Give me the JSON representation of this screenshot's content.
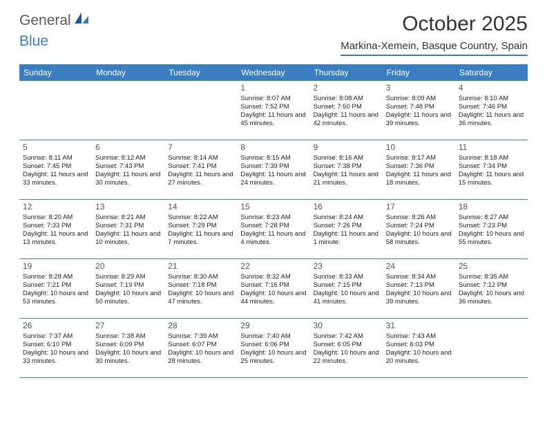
{
  "logo": {
    "text1": "General",
    "text2": "Blue"
  },
  "title": "October 2025",
  "location": "Markina-Xemein, Basque Country, Spain",
  "weekdays": [
    "Sunday",
    "Monday",
    "Tuesday",
    "Wednesday",
    "Thursday",
    "Friday",
    "Saturday"
  ],
  "colors": {
    "brand": "#3a7dc0",
    "text": "#333333",
    "cellText": "#222222",
    "headerBg": "#3a7dc0",
    "headerFg": "#ffffff"
  },
  "startOffset": 3,
  "days": [
    {
      "n": "1",
      "sr": "8:07 AM",
      "ss": "7:52 PM",
      "dl": "11 hours and 45 minutes."
    },
    {
      "n": "2",
      "sr": "8:08 AM",
      "ss": "7:50 PM",
      "dl": "11 hours and 42 minutes."
    },
    {
      "n": "3",
      "sr": "8:09 AM",
      "ss": "7:48 PM",
      "dl": "11 hours and 39 minutes."
    },
    {
      "n": "4",
      "sr": "8:10 AM",
      "ss": "7:46 PM",
      "dl": "11 hours and 36 minutes."
    },
    {
      "n": "5",
      "sr": "8:11 AM",
      "ss": "7:45 PM",
      "dl": "11 hours and 33 minutes."
    },
    {
      "n": "6",
      "sr": "8:12 AM",
      "ss": "7:43 PM",
      "dl": "11 hours and 30 minutes."
    },
    {
      "n": "7",
      "sr": "8:14 AM",
      "ss": "7:41 PM",
      "dl": "11 hours and 27 minutes."
    },
    {
      "n": "8",
      "sr": "8:15 AM",
      "ss": "7:39 PM",
      "dl": "11 hours and 24 minutes."
    },
    {
      "n": "9",
      "sr": "8:16 AM",
      "ss": "7:38 PM",
      "dl": "11 hours and 21 minutes."
    },
    {
      "n": "10",
      "sr": "8:17 AM",
      "ss": "7:36 PM",
      "dl": "11 hours and 18 minutes."
    },
    {
      "n": "11",
      "sr": "8:18 AM",
      "ss": "7:34 PM",
      "dl": "11 hours and 15 minutes."
    },
    {
      "n": "12",
      "sr": "8:20 AM",
      "ss": "7:33 PM",
      "dl": "11 hours and 13 minutes."
    },
    {
      "n": "13",
      "sr": "8:21 AM",
      "ss": "7:31 PM",
      "dl": "11 hours and 10 minutes."
    },
    {
      "n": "14",
      "sr": "8:22 AM",
      "ss": "7:29 PM",
      "dl": "11 hours and 7 minutes."
    },
    {
      "n": "15",
      "sr": "8:23 AM",
      "ss": "7:28 PM",
      "dl": "11 hours and 4 minutes."
    },
    {
      "n": "16",
      "sr": "8:24 AM",
      "ss": "7:26 PM",
      "dl": "11 hours and 1 minute."
    },
    {
      "n": "17",
      "sr": "8:26 AM",
      "ss": "7:24 PM",
      "dl": "10 hours and 58 minutes."
    },
    {
      "n": "18",
      "sr": "8:27 AM",
      "ss": "7:23 PM",
      "dl": "10 hours and 55 minutes."
    },
    {
      "n": "19",
      "sr": "8:28 AM",
      "ss": "7:21 PM",
      "dl": "10 hours and 53 minutes."
    },
    {
      "n": "20",
      "sr": "8:29 AM",
      "ss": "7:19 PM",
      "dl": "10 hours and 50 minutes."
    },
    {
      "n": "21",
      "sr": "8:30 AM",
      "ss": "7:18 PM",
      "dl": "10 hours and 47 minutes."
    },
    {
      "n": "22",
      "sr": "8:32 AM",
      "ss": "7:16 PM",
      "dl": "10 hours and 44 minutes."
    },
    {
      "n": "23",
      "sr": "8:33 AM",
      "ss": "7:15 PM",
      "dl": "10 hours and 41 minutes."
    },
    {
      "n": "24",
      "sr": "8:34 AM",
      "ss": "7:13 PM",
      "dl": "10 hours and 39 minutes."
    },
    {
      "n": "25",
      "sr": "8:35 AM",
      "ss": "7:12 PM",
      "dl": "10 hours and 36 minutes."
    },
    {
      "n": "26",
      "sr": "7:37 AM",
      "ss": "6:10 PM",
      "dl": "10 hours and 33 minutes."
    },
    {
      "n": "27",
      "sr": "7:38 AM",
      "ss": "6:09 PM",
      "dl": "10 hours and 30 minutes."
    },
    {
      "n": "28",
      "sr": "7:39 AM",
      "ss": "6:07 PM",
      "dl": "10 hours and 28 minutes."
    },
    {
      "n": "29",
      "sr": "7:40 AM",
      "ss": "6:06 PM",
      "dl": "10 hours and 25 minutes."
    },
    {
      "n": "30",
      "sr": "7:42 AM",
      "ss": "6:05 PM",
      "dl": "10 hours and 22 minutes."
    },
    {
      "n": "31",
      "sr": "7:43 AM",
      "ss": "6:03 PM",
      "dl": "10 hours and 20 minutes."
    }
  ],
  "labels": {
    "sunrise": "Sunrise: ",
    "sunset": "Sunset: ",
    "daylight": "Daylight: "
  }
}
